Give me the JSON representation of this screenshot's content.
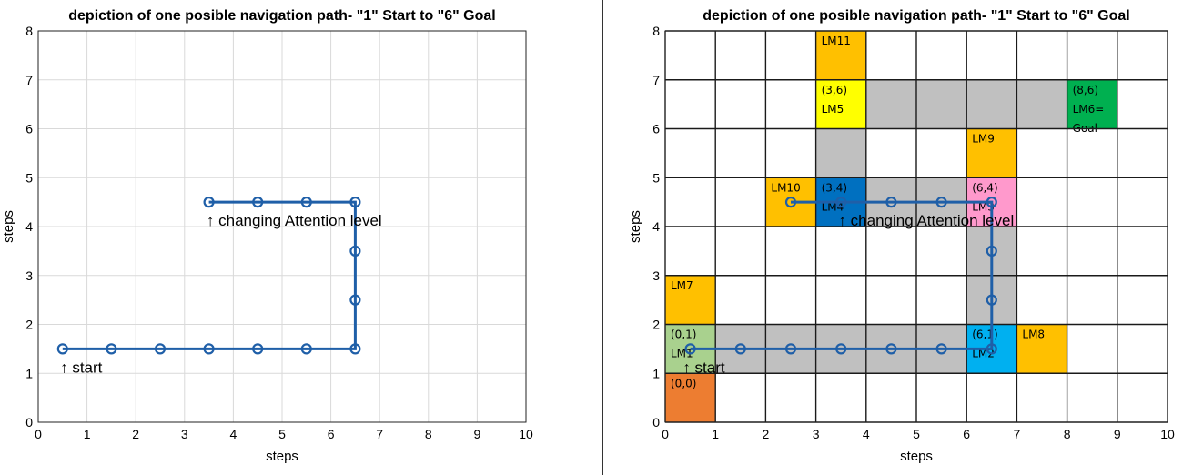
{
  "chart_data": [
    {
      "type": "line",
      "title": "depiction of one posible navigation path- \"1\" Start to \"6\" Goal",
      "xlabel": "steps",
      "ylabel": "steps",
      "xlim": [
        0,
        10
      ],
      "ylim": [
        0,
        8
      ],
      "xticks": [
        "0",
        "1",
        "2",
        "3",
        "4",
        "5",
        "6",
        "7",
        "8",
        "9",
        "10"
      ],
      "yticks": [
        "0",
        "1",
        "2",
        "3",
        "4",
        "5",
        "6",
        "7",
        "8"
      ],
      "grid": true,
      "line_color": "#1f5fa8",
      "path": [
        [
          0.5,
          1.5
        ],
        [
          1.5,
          1.5
        ],
        [
          2.5,
          1.5
        ],
        [
          3.5,
          1.5
        ],
        [
          4.5,
          1.5
        ],
        [
          5.5,
          1.5
        ],
        [
          6.5,
          1.5
        ],
        [
          6.5,
          2.5
        ],
        [
          6.5,
          3.5
        ],
        [
          6.5,
          4.5
        ],
        [
          5.5,
          4.5
        ],
        [
          4.5,
          4.5
        ],
        [
          3.5,
          4.5
        ]
      ],
      "annotations": [
        {
          "text": "↑ start",
          "x": 0.45,
          "y": 1.0
        },
        {
          "text": "↑ changing Attention level",
          "x": 3.45,
          "y": 4.0
        }
      ]
    },
    {
      "type": "line",
      "title": "depiction of one posible navigation path- \"1\" Start to \"6\" Goal",
      "xlabel": "steps",
      "ylabel": "steps",
      "xlim": [
        0,
        10
      ],
      "ylim": [
        0,
        8
      ],
      "xticks": [
        "0",
        "1",
        "2",
        "3",
        "4",
        "5",
        "6",
        "7",
        "8",
        "9",
        "10"
      ],
      "yticks": [
        "0",
        "1",
        "2",
        "3",
        "4",
        "5",
        "6",
        "7",
        "8"
      ],
      "grid": true,
      "line_color": "#1f5fa8",
      "path": [
        [
          0.5,
          1.5
        ],
        [
          1.5,
          1.5
        ],
        [
          2.5,
          1.5
        ],
        [
          3.5,
          1.5
        ],
        [
          4.5,
          1.5
        ],
        [
          5.5,
          1.5
        ],
        [
          6.5,
          1.5
        ],
        [
          6.5,
          2.5
        ],
        [
          6.5,
          3.5
        ],
        [
          6.5,
          4.5
        ],
        [
          5.5,
          4.5
        ],
        [
          4.5,
          4.5
        ],
        [
          3.5,
          4.5
        ],
        [
          2.5,
          4.5
        ]
      ],
      "cells": [
        {
          "x": 0,
          "y": 0,
          "color": "#ed7d31",
          "lines": [
            "(0,0)"
          ]
        },
        {
          "x": 0,
          "y": 1,
          "color": "#a9d18e",
          "lines": [
            "(0,1)",
            "LM1"
          ]
        },
        {
          "x": 0,
          "y": 2,
          "color": "#ffc000",
          "lines": [
            "LM7"
          ]
        },
        {
          "x": 1,
          "y": 1,
          "color": "#c0c0c0",
          "lines": []
        },
        {
          "x": 2,
          "y": 1,
          "color": "#c0c0c0",
          "lines": []
        },
        {
          "x": 3,
          "y": 1,
          "color": "#c0c0c0",
          "lines": []
        },
        {
          "x": 4,
          "y": 1,
          "color": "#c0c0c0",
          "lines": []
        },
        {
          "x": 5,
          "y": 1,
          "color": "#c0c0c0",
          "lines": []
        },
        {
          "x": 6,
          "y": 1,
          "color": "#00b0f0",
          "lines": [
            "(6,1)",
            "LM2"
          ]
        },
        {
          "x": 7,
          "y": 1,
          "color": "#ffc000",
          "lines": [
            "LM8"
          ]
        },
        {
          "x": 6,
          "y": 2,
          "color": "#c0c0c0",
          "lines": []
        },
        {
          "x": 6,
          "y": 3,
          "color": "#c0c0c0",
          "lines": []
        },
        {
          "x": 6,
          "y": 4,
          "color": "#ff99cc",
          "lines": [
            "(6,4)",
            "LM3"
          ]
        },
        {
          "x": 6,
          "y": 5,
          "color": "#ffc000",
          "lines": [
            "LM9"
          ]
        },
        {
          "x": 2,
          "y": 4,
          "color": "#ffc000",
          "lines": [
            "LM10"
          ]
        },
        {
          "x": 3,
          "y": 4,
          "color": "#0070c0",
          "lines": [
            "(3,4)",
            "LM4"
          ]
        },
        {
          "x": 4,
          "y": 4,
          "color": "#c0c0c0",
          "lines": []
        },
        {
          "x": 5,
          "y": 4,
          "color": "#c0c0c0",
          "lines": []
        },
        {
          "x": 3,
          "y": 5,
          "color": "#c0c0c0",
          "lines": []
        },
        {
          "x": 3,
          "y": 6,
          "color": "#ffff00",
          "lines": [
            "(3,6)",
            "LM5"
          ]
        },
        {
          "x": 3,
          "y": 7,
          "color": "#ffc000",
          "lines": [
            "LM11"
          ]
        },
        {
          "x": 4,
          "y": 6,
          "color": "#c0c0c0",
          "lines": []
        },
        {
          "x": 5,
          "y": 6,
          "color": "#c0c0c0",
          "lines": []
        },
        {
          "x": 6,
          "y": 6,
          "color": "#c0c0c0",
          "lines": []
        },
        {
          "x": 7,
          "y": 6,
          "color": "#c0c0c0",
          "lines": []
        },
        {
          "x": 8,
          "y": 6,
          "color": "#00b050",
          "lines": [
            "(8,6)",
            "LM6=",
            "Goal"
          ]
        }
      ],
      "annotations": [
        {
          "text": "↑ start",
          "x": 0.35,
          "y": 1.0
        },
        {
          "text": "↑ changing Attention level",
          "x": 3.45,
          "y": 4.0
        }
      ]
    }
  ]
}
